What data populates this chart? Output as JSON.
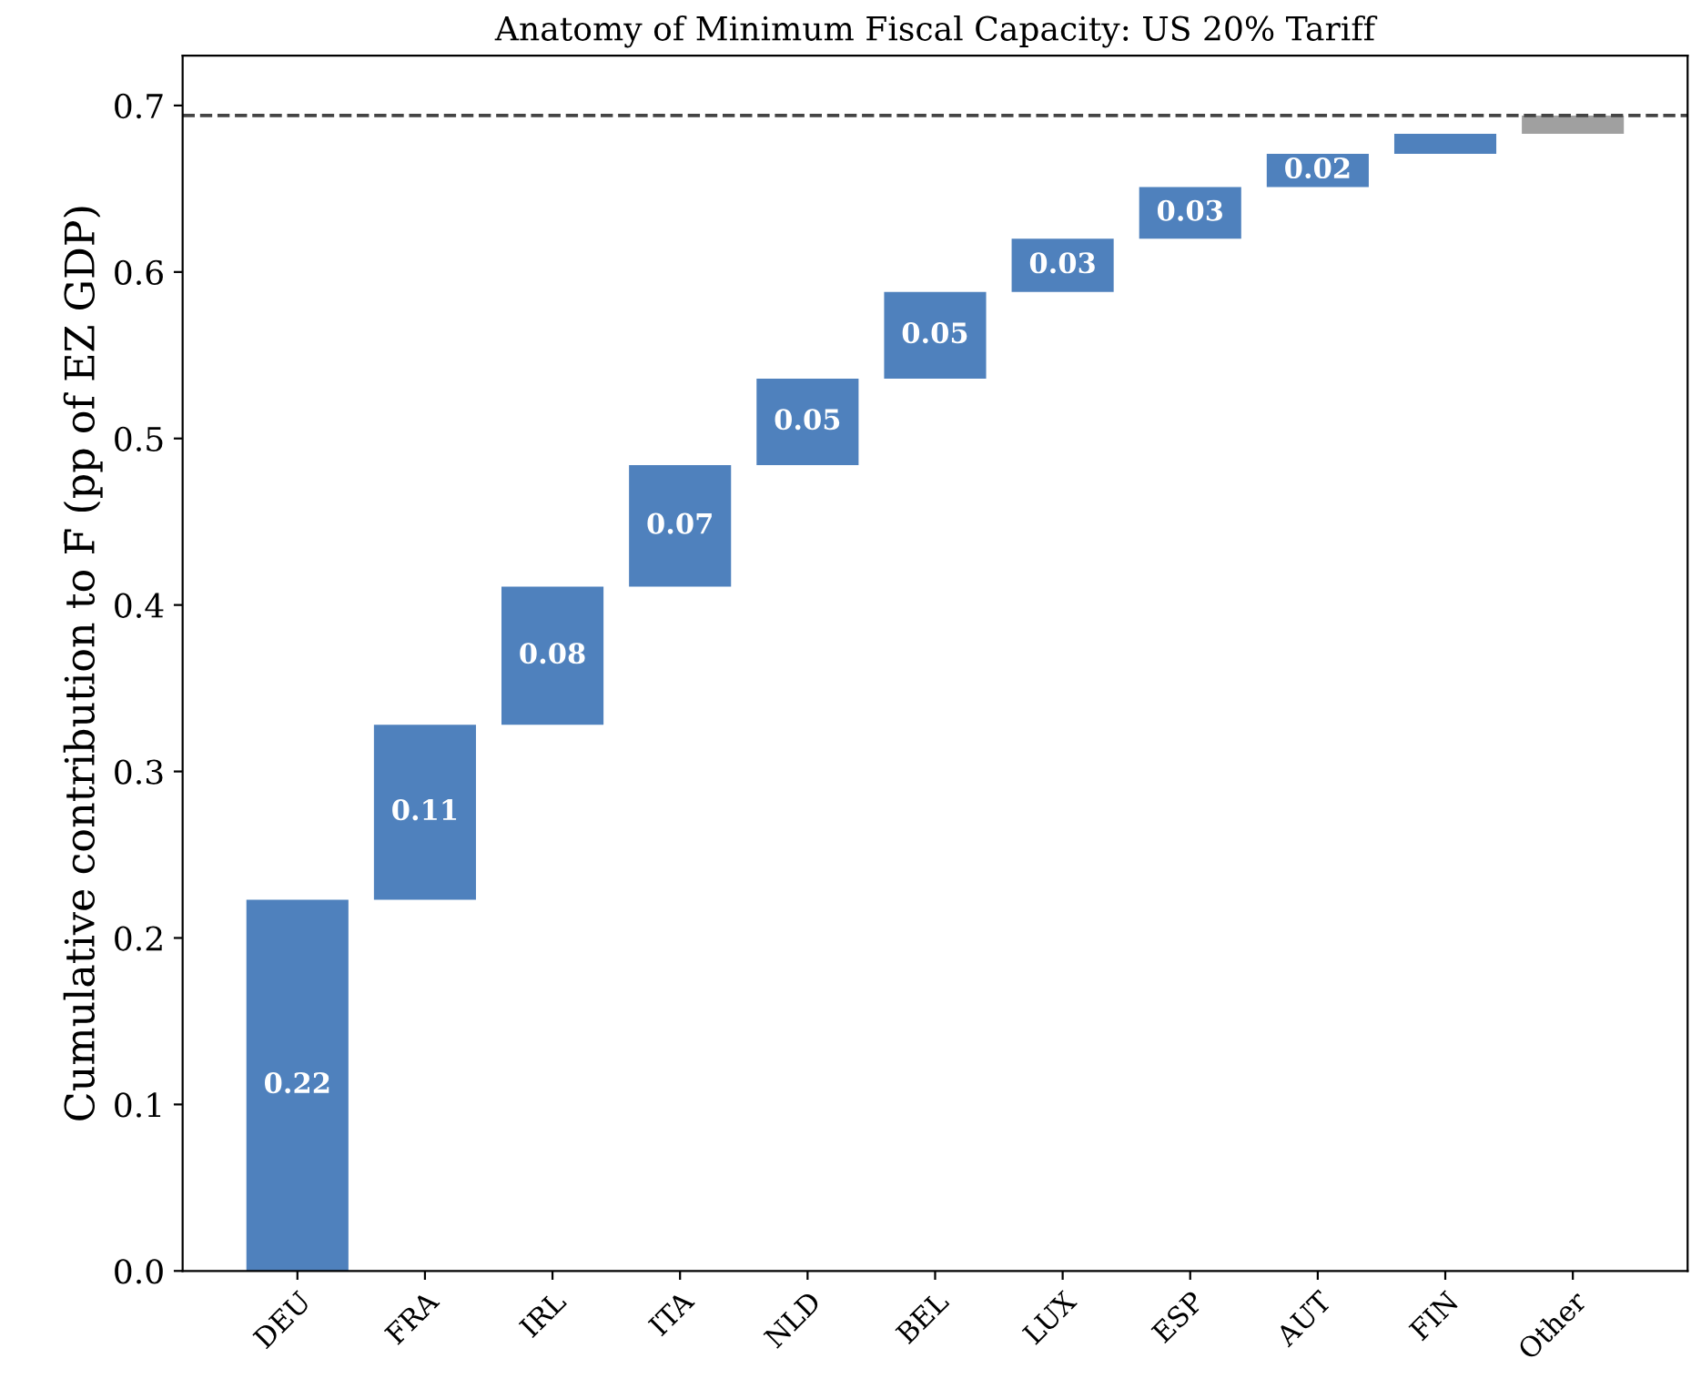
{
  "chart_data": {
    "type": "bar",
    "title": "Anatomy of Minimum Fiscal Capacity: US 20% Tariff",
    "ylabel": "Cumulative contribution to F̄ (pp of EZ GDP)",
    "categories": [
      "DEU",
      "FRA",
      "IRL",
      "ITA",
      "NLD",
      "BEL",
      "LUX",
      "ESP",
      "AUT",
      "FIN",
      "Other"
    ],
    "values": [
      0.223,
      0.105,
      0.083,
      0.073,
      0.052,
      0.052,
      0.032,
      0.031,
      0.02,
      0.012,
      0.011
    ],
    "base": [
      0,
      0.223,
      0.328,
      0.411,
      0.484,
      0.536,
      0.588,
      0.62,
      0.651,
      0.671,
      0.683
    ],
    "colors": [
      "#4f81bd",
      "#4f81bd",
      "#4f81bd",
      "#4f81bd",
      "#4f81bd",
      "#4f81bd",
      "#4f81bd",
      "#4f81bd",
      "#4f81bd",
      "#4f81bd",
      "#a0a0a0"
    ],
    "value_labels": [
      "0.22",
      "0.11",
      "0.08",
      "0.07",
      "0.05",
      "0.05",
      "0.03",
      "0.03",
      "0.02",
      null,
      null
    ],
    "ylim": [
      0,
      0.73
    ],
    "yticks": [
      {
        "value": 0,
        "label": "0.0"
      },
      0.1,
      0.2,
      0.3,
      0.4,
      0.5,
      0.6,
      0.7
    ],
    "ref_lines": [
      {
        "axis": "y",
        "value": 0.694,
        "color": "#444444",
        "line_style": "dashed"
      }
    ],
    "grid": false,
    "legend": false
  }
}
